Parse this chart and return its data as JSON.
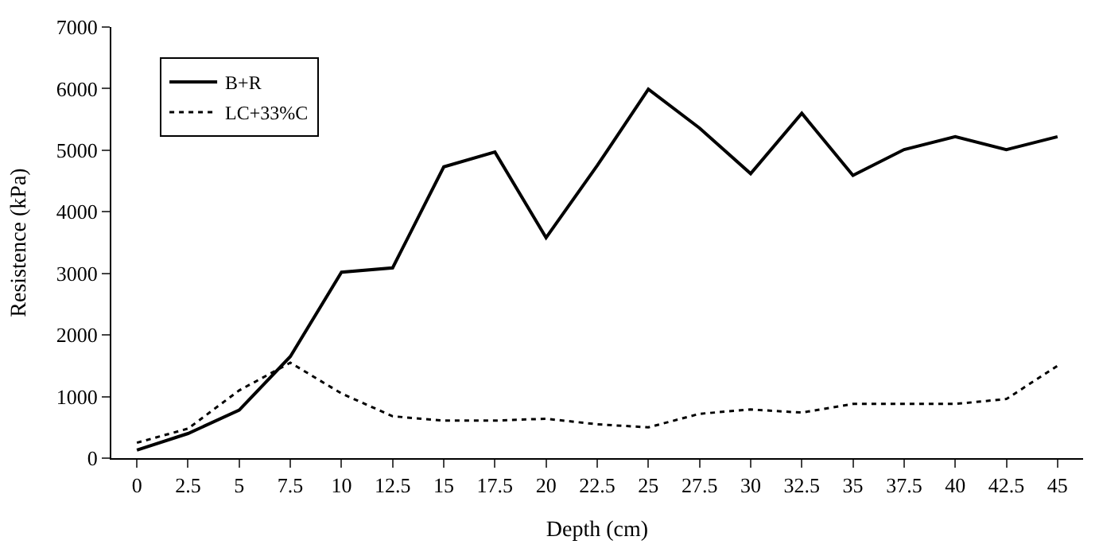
{
  "chart_data": {
    "type": "line",
    "xlabel": "Depth (cm)",
    "ylabel": "Resistence (kPa)",
    "categories": [
      "0",
      "2.5",
      "5",
      "7.5",
      "10",
      "12.5",
      "15",
      "17.5",
      "20",
      "22.5",
      "25",
      "27.5",
      "30",
      "32.5",
      "35",
      "37.5",
      "40",
      "42.5",
      "45"
    ],
    "series": [
      {
        "name": "B+R",
        "color": "#000000",
        "line_style": "solid",
        "values": [
          130,
          400,
          780,
          1650,
          3020,
          3090,
          4730,
          4970,
          3580,
          4750,
          5990,
          5360,
          4620,
          5600,
          4590,
          5010,
          5220,
          5010,
          5220
        ]
      },
      {
        "name": "LC+33%C",
        "color": "#000000",
        "line_style": "dotted",
        "values": [
          250,
          480,
          1100,
          1550,
          1050,
          680,
          610,
          610,
          640,
          550,
          500,
          720,
          790,
          740,
          880,
          880,
          880,
          960,
          1500
        ]
      }
    ],
    "ylim": [
      0,
      7000
    ],
    "yticks": [
      0,
      1000,
      2000,
      3000,
      4000,
      5000,
      6000,
      7000
    ],
    "legend": "top left",
    "marker": "none"
  }
}
